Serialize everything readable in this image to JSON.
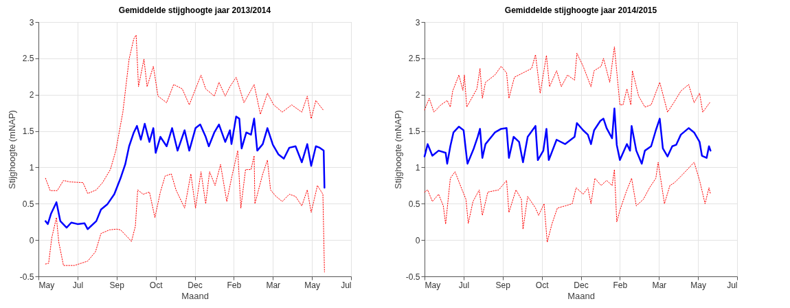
{
  "chart_data": [
    {
      "type": "line",
      "title": "Gemiddelde stijghoogte jaar 2013/2014",
      "xlabel": "Maand",
      "ylabel": "Stijghoogte (mNAP)",
      "xlim": [
        "2013-05-30",
        "2014-07-04"
      ],
      "xticks": [
        {
          "value": "2013-05-30",
          "label": "May"
        },
        {
          "value": "2013-07-19",
          "label": "Jul"
        },
        {
          "value": "2013-09-07",
          "label": "Sep"
        },
        {
          "value": "2013-10-27",
          "label": "Oct"
        },
        {
          "value": "2013-12-16",
          "label": "Dec"
        },
        {
          "value": "2014-02-04",
          "label": "Feb"
        },
        {
          "value": "2014-03-26",
          "label": "Mar"
        },
        {
          "value": "2014-05-15",
          "label": "May"
        },
        {
          "value": "2014-07-04",
          "label": "Jul"
        }
      ],
      "ylim": [
        -0.5,
        3
      ],
      "yticks": [
        -0.5,
        0,
        0.5,
        1,
        1.5,
        2,
        2.5,
        3
      ],
      "grid": true,
      "series": [
        {
          "color": "#ff0000",
          "line_style": "dotted",
          "x": [
            "2013-06-08",
            "2013-06-14",
            "2013-06-23",
            "2013-07-01",
            "2013-07-09",
            "2013-07-26",
            "2013-08-01",
            "2013-08-12",
            "2013-08-20",
            "2013-08-30",
            "2013-09-06",
            "2013-09-15",
            "2013-09-23",
            "2013-09-29",
            "2013-10-02",
            "2013-10-05",
            "2013-10-12",
            "2013-10-16",
            "2013-10-24",
            "2013-10-30",
            "2013-11-10",
            "2013-11-19",
            "2013-11-30",
            "2013-12-09",
            "2013-12-17",
            "2013-12-24",
            "2013-12-30",
            "2014-01-10",
            "2014-01-16",
            "2014-01-24",
            "2014-01-30",
            "2014-02-07",
            "2014-02-17",
            "2014-03-02",
            "2014-03-10",
            "2014-03-19",
            "2014-03-27",
            "2014-04-07",
            "2014-04-19",
            "2014-05-02",
            "2014-05-09",
            "2014-05-14",
            "2014-05-20",
            "2014-05-30"
          ],
          "values": [
            0.85,
            0.68,
            0.68,
            0.82,
            0.8,
            0.79,
            0.64,
            0.69,
            0.79,
            0.97,
            1.23,
            1.76,
            2.49,
            2.77,
            2.82,
            2.11,
            2.49,
            2.11,
            2.39,
            1.98,
            1.89,
            2.14,
            2.08,
            1.86,
            2.08,
            2.27,
            2.08,
            1.98,
            2.17,
            1.98,
            2.11,
            2.24,
            1.89,
            2.14,
            1.73,
            2.02,
            1.86,
            1.76,
            1.86,
            1.76,
            1.98,
            1.67,
            1.92,
            1.78
          ]
        },
        {
          "color": "#0000ff",
          "line_style": "solid",
          "x": [
            "2013-06-08",
            "2013-06-11",
            "2013-06-15",
            "2013-06-22",
            "2013-06-27",
            "2013-07-05",
            "2013-07-11",
            "2013-07-19",
            "2013-07-28",
            "2013-08-01",
            "2013-08-12",
            "2013-08-18",
            "2013-08-26",
            "2013-09-04",
            "2013-09-12",
            "2013-09-18",
            "2013-09-23",
            "2013-09-29",
            "2013-10-03",
            "2013-10-08",
            "2013-10-13",
            "2013-10-19",
            "2013-10-24",
            "2013-10-27",
            "2013-11-02",
            "2013-11-10",
            "2013-11-17",
            "2013-11-24",
            "2013-12-03",
            "2013-12-09",
            "2013-12-17",
            "2013-12-23",
            "2013-12-30",
            "2014-01-03",
            "2014-01-10",
            "2014-01-16",
            "2014-01-24",
            "2014-01-30",
            "2014-02-01",
            "2014-02-07",
            "2014-02-11",
            "2014-02-14",
            "2014-02-20",
            "2014-02-26",
            "2014-03-02",
            "2014-03-06",
            "2014-03-13",
            "2014-03-19",
            "2014-03-26",
            "2014-04-02",
            "2014-04-09",
            "2014-04-16",
            "2014-04-24",
            "2014-05-02",
            "2014-05-09",
            "2014-05-14",
            "2014-05-20",
            "2014-05-25",
            "2014-05-30",
            "2014-05-31"
          ],
          "values": [
            0.26,
            0.22,
            0.36,
            0.52,
            0.26,
            0.17,
            0.24,
            0.22,
            0.23,
            0.15,
            0.26,
            0.42,
            0.49,
            0.63,
            0.85,
            1.04,
            1.29,
            1.48,
            1.57,
            1.38,
            1.6,
            1.35,
            1.54,
            1.2,
            1.42,
            1.29,
            1.54,
            1.23,
            1.51,
            1.23,
            1.54,
            1.59,
            1.42,
            1.29,
            1.48,
            1.59,
            1.35,
            1.51,
            1.32,
            1.7,
            1.67,
            1.26,
            1.48,
            1.45,
            1.67,
            1.23,
            1.32,
            1.54,
            1.31,
            1.18,
            1.12,
            1.27,
            1.29,
            1.07,
            1.32,
            1.02,
            1.29,
            1.27,
            1.23,
            0.72
          ]
        },
        {
          "color": "#ff0000",
          "line_style": "dotted",
          "x": [
            "2013-06-08",
            "2013-06-12",
            "2013-06-16",
            "2013-06-22",
            "2013-06-25",
            "2013-07-01",
            "2013-07-15",
            "2013-08-01",
            "2013-08-11",
            "2013-08-18",
            "2013-08-29",
            "2013-09-07",
            "2013-09-12",
            "2013-09-21",
            "2013-09-26",
            "2013-10-01",
            "2013-10-04",
            "2013-10-11",
            "2013-10-19",
            "2013-10-26",
            "2013-11-02",
            "2013-11-08",
            "2013-11-16",
            "2013-11-22",
            "2013-12-03",
            "2013-12-11",
            "2013-12-17",
            "2013-12-24",
            "2013-12-30",
            "2014-01-04",
            "2014-01-11",
            "2014-01-18",
            "2014-01-26",
            "2014-02-01",
            "2014-02-09",
            "2014-02-13",
            "2014-02-19",
            "2014-02-26",
            "2014-03-02",
            "2014-03-03",
            "2014-03-13",
            "2014-03-19",
            "2014-03-23",
            "2014-03-30",
            "2014-04-07",
            "2014-04-16",
            "2014-04-24",
            "2014-05-02",
            "2014-05-09",
            "2014-05-14",
            "2014-05-22",
            "2014-05-29",
            "2014-05-31"
          ],
          "values": [
            -0.33,
            -0.32,
            0.03,
            0.31,
            -0.03,
            -0.35,
            -0.35,
            -0.29,
            -0.16,
            0.09,
            0.14,
            0.15,
            0.14,
            0.04,
            -0.02,
            0.19,
            0.69,
            0.63,
            0.66,
            0.31,
            0.66,
            0.88,
            0.91,
            0.69,
            0.44,
            0.91,
            0.44,
            0.94,
            0.5,
            0.94,
            0.75,
            1.04,
            0.53,
            0.85,
            1.23,
            0.44,
            0.97,
            0.97,
            1.16,
            0.5,
            0.91,
            1.1,
            0.69,
            0.6,
            0.53,
            0.63,
            0.6,
            0.47,
            0.69,
            0.38,
            0.75,
            0.63,
            -0.44
          ]
        }
      ]
    },
    {
      "type": "line",
      "title": "Gemiddelde stijghoogte jaar 2014/2015",
      "xlabel": "Maand",
      "ylabel": "Stijghoogte (mNAP)",
      "xlim": [
        "2014-05-30",
        "2015-07-04"
      ],
      "xticks": [
        {
          "value": "2014-05-30",
          "label": "May"
        },
        {
          "value": "2014-07-19",
          "label": "Jul"
        },
        {
          "value": "2014-09-07",
          "label": "Sep"
        },
        {
          "value": "2014-10-27",
          "label": "Oct"
        },
        {
          "value": "2014-12-16",
          "label": "Dec"
        },
        {
          "value": "2015-02-04",
          "label": "Feb"
        },
        {
          "value": "2015-03-26",
          "label": "Mar"
        },
        {
          "value": "2015-05-15",
          "label": "May"
        },
        {
          "value": "2015-07-04",
          "label": "Jul"
        }
      ],
      "ylim": [
        -0.5,
        3
      ],
      "yticks": [
        -0.5,
        0,
        0.5,
        1,
        1.5,
        2,
        2.5,
        3
      ],
      "grid": true,
      "series": [
        {
          "color": "#ff0000",
          "line_style": "dotted",
          "x": [
            "2014-05-30",
            "2014-06-05",
            "2014-06-11",
            "2014-06-20",
            "2014-06-28",
            "2014-07-02",
            "2014-07-05",
            "2014-07-13",
            "2014-07-18",
            "2014-07-20",
            "2014-07-23",
            "2014-08-05",
            "2014-08-09",
            "2014-08-12",
            "2014-08-16",
            "2014-08-28",
            "2014-09-05",
            "2014-09-12",
            "2014-09-15",
            "2014-09-22",
            "2014-10-03",
            "2014-10-14",
            "2014-10-19",
            "2014-10-25",
            "2014-11-02",
            "2014-11-06",
            "2014-11-15",
            "2014-11-21",
            "2014-11-29",
            "2014-12-08",
            "2014-12-11",
            "2014-12-19",
            "2014-12-29",
            "2015-01-02",
            "2015-01-11",
            "2015-01-14",
            "2015-01-22",
            "2015-01-28",
            "2015-02-04",
            "2015-02-08",
            "2015-02-13",
            "2015-02-18",
            "2015-02-20",
            "2015-02-28",
            "2015-03-08",
            "2015-03-16",
            "2015-03-27",
            "2015-04-06",
            "2015-04-14",
            "2015-04-23",
            "2015-05-03",
            "2015-05-10",
            "2015-05-17",
            "2015-05-21",
            "2015-05-30"
          ],
          "values": [
            1.79,
            1.95,
            1.76,
            1.86,
            1.92,
            1.83,
            2.05,
            2.27,
            2.06,
            2.27,
            1.83,
            2.08,
            2.36,
            1.95,
            2.17,
            2.27,
            2.39,
            2.3,
            1.95,
            2.24,
            2.3,
            2.36,
            2.55,
            2.02,
            2.54,
            2.11,
            2.33,
            2.11,
            2.27,
            2.2,
            2.57,
            2.39,
            2.11,
            2.33,
            2.39,
            2.5,
            2.17,
            2.66,
            1.86,
            1.86,
            2.08,
            1.86,
            2.33,
            1.98,
            1.83,
            1.86,
            2.17,
            1.76,
            1.89,
            2.05,
            2.14,
            1.89,
            2.02,
            1.76,
            1.89
          ]
        },
        {
          "color": "#0000ff",
          "line_style": "solid",
          "x": [
            "2014-05-30",
            "2014-06-03",
            "2014-06-09",
            "2014-06-17",
            "2014-06-26",
            "2014-06-28",
            "2014-07-02",
            "2014-07-06",
            "2014-07-13",
            "2014-07-19",
            "2014-07-23",
            "2014-07-24",
            "2014-08-01",
            "2014-08-06",
            "2014-08-09",
            "2014-08-12",
            "2014-08-16",
            "2014-08-28",
            "2014-09-05",
            "2014-09-12",
            "2014-09-15",
            "2014-09-21",
            "2014-09-28",
            "2014-10-03",
            "2014-10-09",
            "2014-10-19",
            "2014-10-22",
            "2014-10-29",
            "2014-11-02",
            "2014-11-05",
            "2014-11-15",
            "2014-11-26",
            "2014-12-08",
            "2014-12-11",
            "2014-12-19",
            "2014-12-25",
            "2014-12-29",
            "2015-01-02",
            "2015-01-10",
            "2015-01-14",
            "2015-01-18",
            "2015-01-25",
            "2015-01-28",
            "2015-01-31",
            "2015-02-04",
            "2015-02-13",
            "2015-02-17",
            "2015-02-19",
            "2015-02-25",
            "2015-03-04",
            "2015-03-08",
            "2015-03-16",
            "2015-03-22",
            "2015-03-27",
            "2015-03-31",
            "2015-04-06",
            "2015-04-12",
            "2015-04-17",
            "2015-04-23",
            "2015-05-03",
            "2015-05-10",
            "2015-05-17",
            "2015-05-20",
            "2015-05-26",
            "2015-05-29",
            "2015-05-31"
          ],
          "values": [
            1.15,
            1.32,
            1.16,
            1.23,
            1.2,
            1.05,
            1.29,
            1.48,
            1.56,
            1.51,
            1.13,
            1.05,
            1.26,
            1.42,
            1.53,
            1.13,
            1.32,
            1.48,
            1.53,
            1.54,
            1.13,
            1.42,
            1.35,
            1.07,
            1.42,
            1.57,
            1.1,
            1.23,
            1.53,
            1.1,
            1.38,
            1.32,
            1.42,
            1.61,
            1.51,
            1.45,
            1.32,
            1.51,
            1.64,
            1.67,
            1.54,
            1.4,
            1.81,
            1.31,
            1.1,
            1.32,
            1.23,
            1.57,
            1.23,
            1.05,
            1.23,
            1.29,
            1.51,
            1.67,
            1.26,
            1.15,
            1.29,
            1.31,
            1.45,
            1.54,
            1.48,
            1.35,
            1.16,
            1.13,
            1.29,
            1.23
          ]
        },
        {
          "color": "#ff0000",
          "line_style": "dotted",
          "x": [
            "2014-05-30",
            "2014-06-03",
            "2014-06-09",
            "2014-06-17",
            "2014-06-23",
            "2014-06-26",
            "2014-07-02",
            "2014-07-08",
            "2014-07-16",
            "2014-07-22",
            "2014-07-25",
            "2014-07-31",
            "2014-08-08",
            "2014-08-12",
            "2014-08-19",
            "2014-09-02",
            "2014-09-12",
            "2014-09-15",
            "2014-09-24",
            "2014-10-01",
            "2014-10-03",
            "2014-10-09",
            "2014-10-19",
            "2014-10-23",
            "2014-10-30",
            "2014-11-03",
            "2014-11-09",
            "2014-11-16",
            "2014-11-26",
            "2014-12-05",
            "2014-12-10",
            "2014-12-19",
            "2014-12-25",
            "2014-12-29",
            "2015-01-03",
            "2015-01-11",
            "2015-01-18",
            "2015-01-25",
            "2015-01-28",
            "2015-01-31",
            "2015-02-04",
            "2015-02-12",
            "2015-02-19",
            "2015-02-25",
            "2015-03-06",
            "2015-03-14",
            "2015-03-22",
            "2015-03-25",
            "2015-04-02",
            "2015-04-09",
            "2015-04-15",
            "2015-04-26",
            "2015-05-10",
            "2015-05-17",
            "2015-05-24",
            "2015-05-29",
            "2015-05-31"
          ],
          "values": [
            0.66,
            0.69,
            0.53,
            0.63,
            0.47,
            0.22,
            0.85,
            0.94,
            0.72,
            0.56,
            0.23,
            0.53,
            0.69,
            0.34,
            0.66,
            0.69,
            0.82,
            0.38,
            0.69,
            0.56,
            0.15,
            0.6,
            0.44,
            0.34,
            0.5,
            -0.03,
            0.22,
            0.44,
            0.47,
            0.5,
            0.72,
            0.63,
            0.72,
            0.5,
            0.85,
            0.75,
            0.82,
            0.75,
            0.97,
            0.25,
            0.41,
            0.66,
            0.85,
            0.47,
            0.56,
            0.72,
            0.85,
            1.07,
            0.5,
            0.75,
            0.79,
            0.91,
            1.07,
            0.82,
            0.5,
            0.72,
            0.63
          ]
        }
      ]
    }
  ]
}
